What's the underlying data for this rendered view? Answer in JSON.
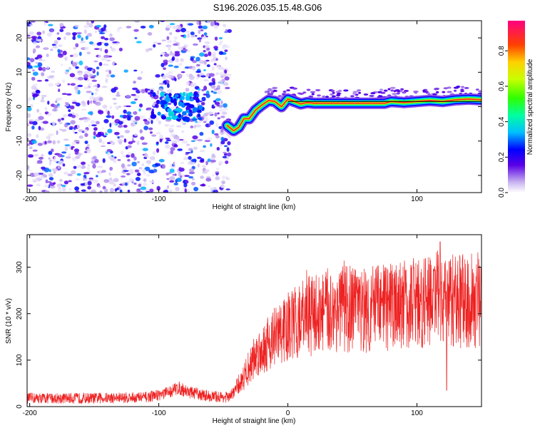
{
  "title": "S196.2026.035.15.48.G06",
  "chart_data": [
    {
      "type": "heatmap",
      "panel": "spectrogram",
      "xlabel": "Height of straight line (km)",
      "ylabel": "Frequency (Hz)",
      "xlim": [
        -202,
        150
      ],
      "ylim": [
        -25,
        25
      ],
      "xticks": [
        -200,
        -100,
        0,
        100
      ],
      "yticks": [
        -20,
        -10,
        0,
        10,
        20
      ],
      "colorbar": {
        "label": "Normalized spectral amplitude",
        "range": [
          0,
          0.97
        ],
        "ticks": [
          0.0,
          0.2,
          0.4,
          0.6,
          0.8
        ]
      },
      "noise_region": {
        "x_range": [
          -202,
          -45
        ],
        "y_range": [
          -25,
          25
        ],
        "amplitude_range": [
          0.02,
          0.35
        ]
      },
      "cluster": {
        "x_range": [
          -105,
          -65
        ],
        "y_range": [
          -4,
          4
        ],
        "amplitude_range": [
          0.2,
          0.4
        ]
      },
      "signal_ridge": {
        "description": "dominant frequency vs height",
        "x": [
          -47,
          -42,
          -38,
          -34,
          -30,
          -25,
          -20,
          -15,
          -10,
          -5,
          0,
          5,
          10,
          15,
          20,
          40,
          60,
          75,
          80,
          90,
          100,
          110,
          120,
          130,
          140,
          150
        ],
        "frequency": [
          -5.5,
          -7,
          -6,
          -3.5,
          -3.5,
          -1,
          0.5,
          1.8,
          1.5,
          0,
          2.2,
          1.5,
          0.8,
          1.2,
          1.0,
          1.0,
          1.0,
          1.0,
          1.5,
          1.2,
          1.5,
          1.8,
          1.5,
          2.0,
          2.2,
          2.0
        ],
        "peak_amplitude": 0.95
      },
      "reference_line": {
        "x_range": [
          0,
          150
        ],
        "frequency": 1.5
      }
    },
    {
      "type": "line",
      "panel": "snr",
      "xlabel": "Height of straight line (km)",
      "ylabel": "SNR (10 * v/v)",
      "xlim": [
        -202,
        150
      ],
      "ylim": [
        0,
        370
      ],
      "xticks": [
        -200,
        -100,
        0,
        100
      ],
      "yticks": [
        0,
        100,
        200,
        300
      ],
      "color": "#ee2222",
      "series": [
        {
          "name": "SNR",
          "envelope_x": [
            -202,
            -150,
            -110,
            -95,
            -85,
            -75,
            -60,
            -45,
            -35,
            -25,
            -15,
            -5,
            0,
            10,
            20,
            40,
            60,
            80,
            100,
            110,
            120,
            130,
            150
          ],
          "envelope_mean": [
            18,
            18,
            20,
            28,
            40,
            30,
            22,
            20,
            60,
            110,
            140,
            160,
            170,
            185,
            200,
            210,
            210,
            215,
            225,
            230,
            235,
            225,
            230
          ],
          "spike_max": 355,
          "spike_min": 35
        }
      ]
    }
  ]
}
